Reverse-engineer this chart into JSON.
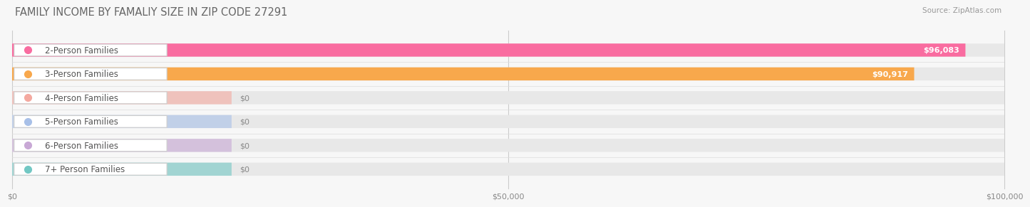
{
  "title": "FAMILY INCOME BY FAMALIY SIZE IN ZIP CODE 27291",
  "source": "Source: ZipAtlas.com",
  "categories": [
    "2-Person Families",
    "3-Person Families",
    "4-Person Families",
    "5-Person Families",
    "6-Person Families",
    "7+ Person Families"
  ],
  "values": [
    96083,
    90917,
    0,
    0,
    0,
    0
  ],
  "bar_colors": [
    "#F96CA0",
    "#F8A84C",
    "#F4A9A0",
    "#A8C0E8",
    "#C8A8D5",
    "#72C8C4"
  ],
  "value_labels": [
    "$96,083",
    "$90,917",
    "$0",
    "$0",
    "$0",
    "$0"
  ],
  "xlim": [
    0,
    100000
  ],
  "xticks": [
    0,
    50000,
    100000
  ],
  "xtick_labels": [
    "$0",
    "$50,000",
    "$100,000"
  ],
  "bg_color": "#f7f7f7",
  "bar_bg_color": "#e8e8e8",
  "row_bg_color": "#f0f0f0",
  "title_fontsize": 10.5,
  "source_fontsize": 7.5,
  "label_fontsize": 8.5,
  "value_fontsize": 8
}
